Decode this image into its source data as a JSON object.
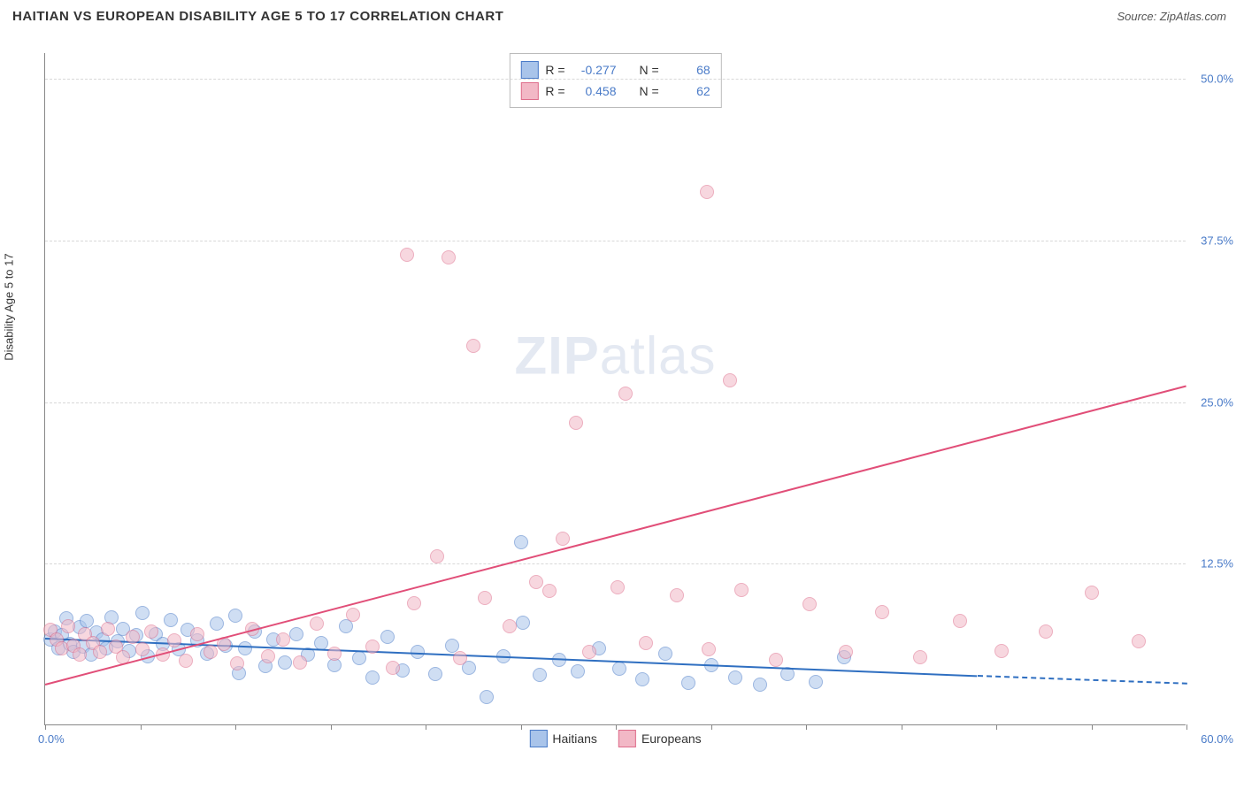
{
  "title": "HAITIAN VS EUROPEAN DISABILITY AGE 5 TO 17 CORRELATION CHART",
  "source": "Source: ZipAtlas.com",
  "ylabel": "Disability Age 5 to 17",
  "watermark_a": "ZIP",
  "watermark_b": "atlas",
  "chart": {
    "type": "scatter",
    "xlim": [
      0,
      60
    ],
    "ylim": [
      0,
      52
    ],
    "xticks": [
      0,
      5,
      10,
      15,
      20,
      25,
      30,
      35,
      40,
      45,
      50,
      55,
      60
    ],
    "yticks": [
      12.5,
      25.0,
      37.5,
      50.0
    ],
    "ytick_labels": [
      "12.5%",
      "25.0%",
      "37.5%",
      "50.0%"
    ],
    "xlim_labels": [
      "0.0%",
      "60.0%"
    ],
    "background_color": "#ffffff",
    "grid_color": "#d8d8d8",
    "axis_color": "#888888",
    "tick_label_color": "#4a7bc8",
    "marker_radius": 8,
    "marker_opacity": 0.55,
    "series": [
      {
        "name": "Haitians",
        "fill": "#a9c4ea",
        "stroke": "#4a7bc8",
        "line_color": "#2f6fc1",
        "R": "-0.277",
        "N": "68",
        "trend": {
          "x1": 0,
          "y1": 6.8,
          "x2": 49,
          "y2": 3.9,
          "dash_x2": 60,
          "dash_y2": 3.3
        },
        "points": [
          [
            0.3,
            6.6
          ],
          [
            0.5,
            7.2
          ],
          [
            0.7,
            5.9
          ],
          [
            0.9,
            6.9
          ],
          [
            1.1,
            8.2
          ],
          [
            1.3,
            6.2
          ],
          [
            1.5,
            5.6
          ],
          [
            1.8,
            7.5
          ],
          [
            2.0,
            6.0
          ],
          [
            2.2,
            8.0
          ],
          [
            2.4,
            5.4
          ],
          [
            2.7,
            7.1
          ],
          [
            3.0,
            6.6
          ],
          [
            3.2,
            5.9
          ],
          [
            3.5,
            8.3
          ],
          [
            3.8,
            6.4
          ],
          [
            4.1,
            7.4
          ],
          [
            4.4,
            5.7
          ],
          [
            4.8,
            6.9
          ],
          [
            5.1,
            8.6
          ],
          [
            5.4,
            5.3
          ],
          [
            5.8,
            7.0
          ],
          [
            6.2,
            6.2
          ],
          [
            6.6,
            8.1
          ],
          [
            7.0,
            5.8
          ],
          [
            7.5,
            7.3
          ],
          [
            8.0,
            6.5
          ],
          [
            8.5,
            5.5
          ],
          [
            9.0,
            7.8
          ],
          [
            9.5,
            6.1
          ],
          [
            10.0,
            8.4
          ],
          [
            10.2,
            4.0
          ],
          [
            10.5,
            5.9
          ],
          [
            11.0,
            7.2
          ],
          [
            11.6,
            4.5
          ],
          [
            12.0,
            6.6
          ],
          [
            12.6,
            4.8
          ],
          [
            13.2,
            7.0
          ],
          [
            13.8,
            5.4
          ],
          [
            14.5,
            6.3
          ],
          [
            15.2,
            4.6
          ],
          [
            15.8,
            7.6
          ],
          [
            16.5,
            5.1
          ],
          [
            17.2,
            3.6
          ],
          [
            18.0,
            6.8
          ],
          [
            18.8,
            4.2
          ],
          [
            19.6,
            5.6
          ],
          [
            20.5,
            3.9
          ],
          [
            21.4,
            6.1
          ],
          [
            22.3,
            4.4
          ],
          [
            23.2,
            2.1
          ],
          [
            24.1,
            5.3
          ],
          [
            25.0,
            14.1
          ],
          [
            25.1,
            7.9
          ],
          [
            26.0,
            3.8
          ],
          [
            27.0,
            5.0
          ],
          [
            28.0,
            4.1
          ],
          [
            29.1,
            5.9
          ],
          [
            30.2,
            4.3
          ],
          [
            31.4,
            3.5
          ],
          [
            32.6,
            5.5
          ],
          [
            33.8,
            3.2
          ],
          [
            35.0,
            4.6
          ],
          [
            36.3,
            3.6
          ],
          [
            37.6,
            3.1
          ],
          [
            39.0,
            3.9
          ],
          [
            40.5,
            3.3
          ],
          [
            42.0,
            5.2
          ]
        ]
      },
      {
        "name": "Europeans",
        "fill": "#f2b8c6",
        "stroke": "#de6d8b",
        "line_color": "#e14e78",
        "R": "0.458",
        "N": "62",
        "trend": {
          "x1": 0,
          "y1": 3.2,
          "x2": 60,
          "y2": 26.3
        },
        "points": [
          [
            0.3,
            7.3
          ],
          [
            0.6,
            6.6
          ],
          [
            0.9,
            5.9
          ],
          [
            1.2,
            7.6
          ],
          [
            1.5,
            6.1
          ],
          [
            1.8,
            5.4
          ],
          [
            2.1,
            7.0
          ],
          [
            2.5,
            6.3
          ],
          [
            2.9,
            5.6
          ],
          [
            3.3,
            7.4
          ],
          [
            3.7,
            6.0
          ],
          [
            4.1,
            5.2
          ],
          [
            4.6,
            6.8
          ],
          [
            5.1,
            5.8
          ],
          [
            5.6,
            7.2
          ],
          [
            6.2,
            5.4
          ],
          [
            6.8,
            6.5
          ],
          [
            7.4,
            4.9
          ],
          [
            8.0,
            7.0
          ],
          [
            8.7,
            5.6
          ],
          [
            9.4,
            6.2
          ],
          [
            10.1,
            4.7
          ],
          [
            10.9,
            7.4
          ],
          [
            11.7,
            5.3
          ],
          [
            12.5,
            6.6
          ],
          [
            13.4,
            4.8
          ],
          [
            14.3,
            7.8
          ],
          [
            15.2,
            5.5
          ],
          [
            16.2,
            8.5
          ],
          [
            17.2,
            6.0
          ],
          [
            18.3,
            4.4
          ],
          [
            19.0,
            36.3
          ],
          [
            19.4,
            9.4
          ],
          [
            20.6,
            13.0
          ],
          [
            21.2,
            36.1
          ],
          [
            21.8,
            5.1
          ],
          [
            23.1,
            9.8
          ],
          [
            22.5,
            29.3
          ],
          [
            24.4,
            7.6
          ],
          [
            25.8,
            11.0
          ],
          [
            27.2,
            14.4
          ],
          [
            26.5,
            10.3
          ],
          [
            27.9,
            23.3
          ],
          [
            28.6,
            5.6
          ],
          [
            30.1,
            10.6
          ],
          [
            30.5,
            25.6
          ],
          [
            31.6,
            6.3
          ],
          [
            33.2,
            10.0
          ],
          [
            34.8,
            41.2
          ],
          [
            34.9,
            5.8
          ],
          [
            36.0,
            26.6
          ],
          [
            36.6,
            10.4
          ],
          [
            38.4,
            5.0
          ],
          [
            40.2,
            9.3
          ],
          [
            42.1,
            5.6
          ],
          [
            44.0,
            8.7
          ],
          [
            46.0,
            5.2
          ],
          [
            48.1,
            8.0
          ],
          [
            50.3,
            5.7
          ],
          [
            52.6,
            7.2
          ],
          [
            55.0,
            10.2
          ],
          [
            57.5,
            6.4
          ]
        ]
      }
    ],
    "legend_labels": {
      "haitians": "Haitians",
      "europeans": "Europeans"
    },
    "stat_labels": {
      "R": "R =",
      "N": "N ="
    }
  }
}
